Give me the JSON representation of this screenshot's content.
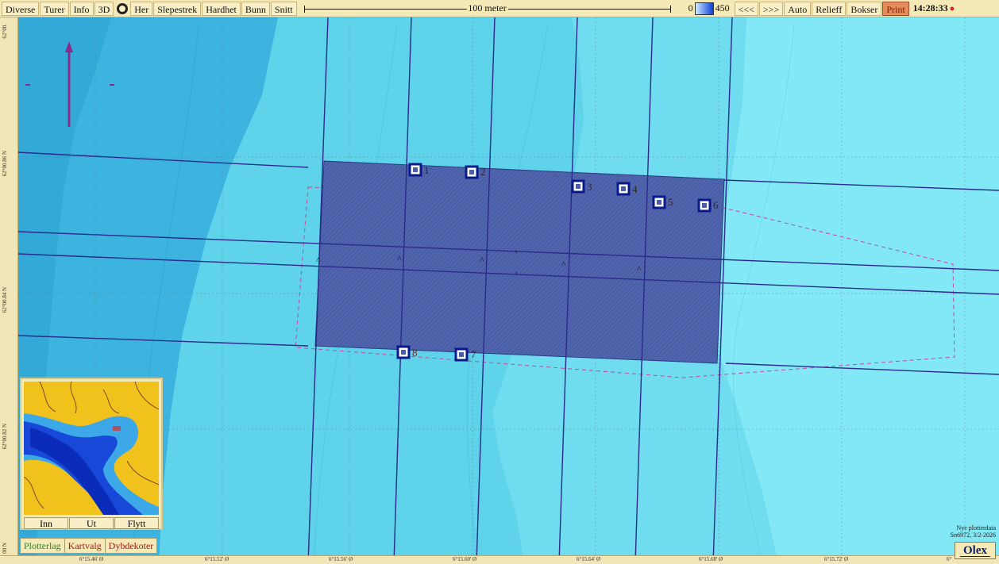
{
  "toolbar": {
    "buttons": [
      "Diverse",
      "Turer",
      "Info",
      "3D",
      "Her",
      "Slepestrek",
      "Hardhet",
      "Bunn",
      "Snitt"
    ],
    "scale_label": "100 meter",
    "depth_min": "0",
    "depth_max": "450",
    "nav": [
      "<<<",
      ">>>",
      "Auto",
      "Relieff",
      "Bokser"
    ],
    "print": "Print",
    "time": "14:28:33"
  },
  "markers": [
    {
      "id": "1"
    },
    {
      "id": "2"
    },
    {
      "id": "3"
    },
    {
      "id": "4"
    },
    {
      "id": "5"
    },
    {
      "id": "6"
    },
    {
      "id": "7"
    },
    {
      "id": "8"
    }
  ],
  "rulers": {
    "lat": [
      "62°00.",
      "62°00.86 N",
      "62°00.84 N",
      "62°00.82 N",
      "00 N"
    ],
    "lon": [
      "6°15.46' Ø",
      "6°15.52' Ø",
      "6°15.56' Ø",
      "6°15.60' Ø",
      "6°15.64' Ø",
      "6°15.68' Ø",
      "6°15.72' Ø",
      "6°"
    ]
  },
  "minimap": {
    "buttons": [
      "Inn",
      "Ut",
      "Flytt"
    ]
  },
  "layers": [
    "Plotterlag",
    "Kartvalg",
    "Dybdekoter"
  ],
  "footnote": {
    "line1": "Nye plotterdata",
    "line2": "Sn6972, 3/2-2026"
  },
  "brand": "Olex",
  "colors": {
    "sea_dark": "#37b2de",
    "sea_mid": "#4cc7e6",
    "sea_light": "#7ce6f5",
    "box_fill": "#4a5fa8",
    "track": "#2a2a8a",
    "land": "#f2c21c",
    "accent_print": "#e68b5a"
  }
}
